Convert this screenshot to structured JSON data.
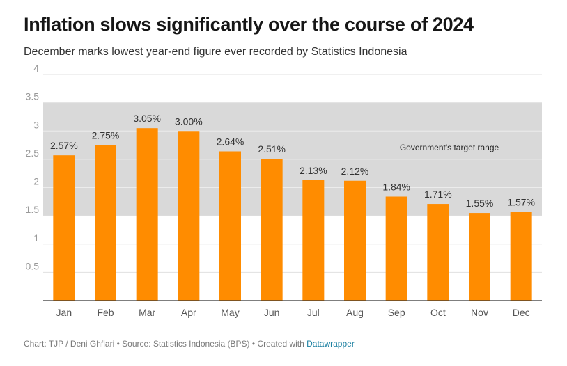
{
  "header": {
    "title": "Inflation slows significantly over the course of 2024",
    "subtitle": "December marks lowest year-end figure ever recorded by Statistics Indonesia"
  },
  "footer": {
    "text": "Chart: TJP / Deni Ghfiari • Source: Statistics Indonesia (BPS) • Created with ",
    "link_text": "Datawrapper"
  },
  "colors": {
    "bar": "#ff8c00",
    "target_band": "#d9d9d9",
    "gridline": "#e0e0e0",
    "axis": "#333333",
    "link": "#1d81a2"
  },
  "chart_data": {
    "type": "bar",
    "title": "Inflation slows significantly over the course of 2024",
    "subtitle": "December marks lowest year-end figure ever recorded by Statistics Indonesia",
    "categories": [
      "Jan",
      "Feb",
      "Mar",
      "Apr",
      "May",
      "Jun",
      "Jul",
      "Aug",
      "Sep",
      "Oct",
      "Nov",
      "Dec"
    ],
    "values": [
      2.57,
      2.75,
      3.05,
      3.0,
      2.64,
      2.51,
      2.13,
      2.12,
      1.84,
      1.71,
      1.55,
      1.57
    ],
    "value_labels": [
      "2.57%",
      "2.75%",
      "3.05%",
      "3.00%",
      "2.64%",
      "2.51%",
      "2.13%",
      "2.12%",
      "1.84%",
      "1.71%",
      "1.55%",
      "1.57%"
    ],
    "ylim": [
      0,
      4
    ],
    "yticks": [
      0.5,
      1,
      1.5,
      2,
      2.5,
      3,
      3.5,
      4
    ],
    "ytick_labels": [
      "0.5",
      "1",
      "1.5",
      "2",
      "2.5",
      "3",
      "3.5",
      "4"
    ],
    "xlabel": "",
    "ylabel": "",
    "grid": true,
    "target_range": {
      "label": "Government's target range",
      "from": 1.5,
      "to": 3.5
    }
  }
}
